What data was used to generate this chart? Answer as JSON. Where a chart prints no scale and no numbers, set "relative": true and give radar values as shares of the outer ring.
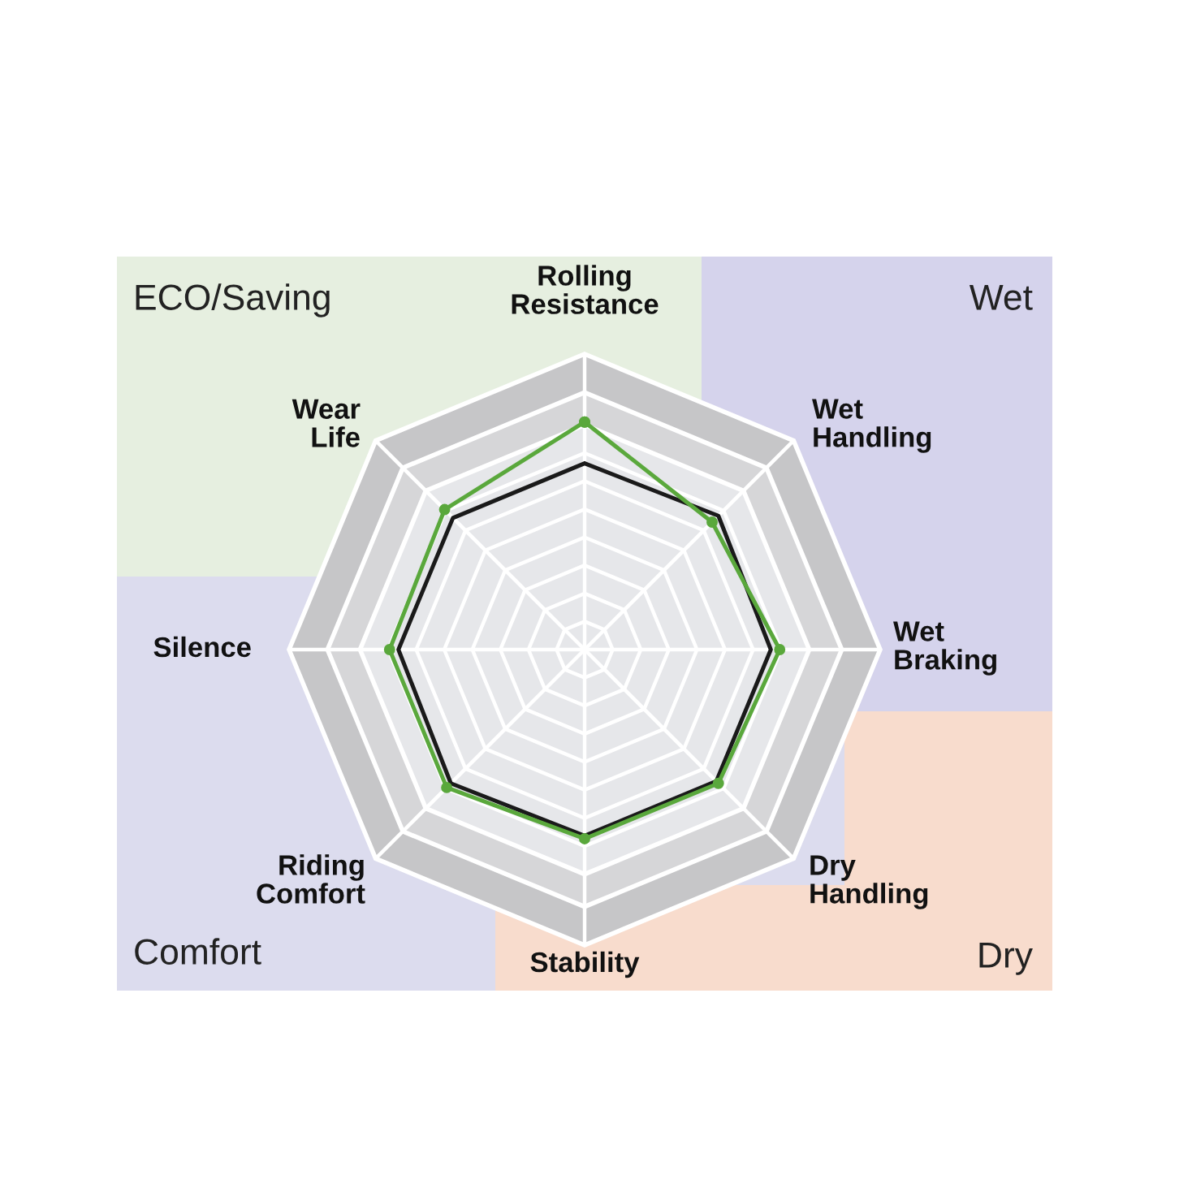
{
  "chart_data": {
    "type": "radar",
    "relative": true,
    "categories": [
      "Rolling\nResistance",
      "Wet\nHandling",
      "Wet\nBraking",
      "Dry\nHandling",
      "Stability",
      "Riding\nComfort",
      "Silence",
      "Wear\nLife"
    ],
    "series": [
      {
        "color": "#1a1a1a",
        "values": [
          0.63,
          0.64,
          0.63,
          0.63,
          0.63,
          0.64,
          0.63,
          0.63
        ],
        "marker": "none"
      },
      {
        "color": "#5aa83c",
        "values": [
          0.77,
          0.61,
          0.66,
          0.64,
          0.64,
          0.66,
          0.66,
          0.67
        ],
        "marker": "circle"
      }
    ],
    "annotations": [
      "ECO/Saving",
      "Wet",
      "Dry",
      "Comfort"
    ]
  }
}
